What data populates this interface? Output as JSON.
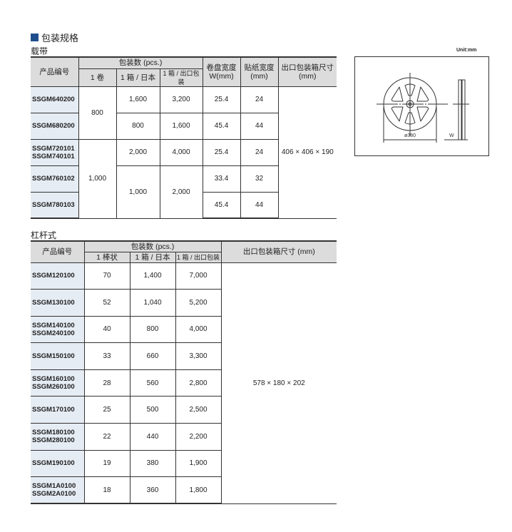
{
  "section_title": "包装规格",
  "accent": "#1f4e8c",
  "carrier": {
    "title": "载带",
    "headers": {
      "product": "产品编号",
      "qty": "包装数 (pcs.)",
      "per_reel": "1 卷",
      "box_japan": "1 箱 / 日本",
      "box_export": "1 箱 / 出口包装",
      "reel_width": "卷盘宽度 W(mm)",
      "tape_width": "贴纸宽度 (mm)",
      "export_box": "出口包装箱尺寸 (mm)"
    },
    "rows": [
      {
        "product": "SSGM640200",
        "per_reel": "800",
        "box_japan": "1,600",
        "box_export": "3,200",
        "reel_width": "25.4",
        "tape_width": "24"
      },
      {
        "product": "SSGM680200",
        "box_japan": "800",
        "box_export": "1,600",
        "reel_width": "45.4",
        "tape_width": "44"
      },
      {
        "product": "SSGM720101\nSSGM740101",
        "per_reel": "1,000",
        "box_japan": "2,000",
        "box_export": "4,000",
        "reel_width": "25.4",
        "tape_width": "24"
      },
      {
        "product": "SSGM760102",
        "box_japan": "1,000",
        "box_export": "2,000",
        "reel_width": "33.4",
        "tape_width": "32"
      },
      {
        "product": "SSGM780103",
        "reel_width": "45.4",
        "tape_width": "44"
      }
    ],
    "export_box": "406 × 406 × 190"
  },
  "diagram": {
    "unit": "Unit:mm",
    "diameter": "ø380",
    "width_label": "W"
  },
  "stick": {
    "title": "杠杆式",
    "headers": {
      "product": "产品编号",
      "qty": "包装数 (pcs.)",
      "per_stick": "1 棒状",
      "box_japan": "1 箱 / 日本",
      "box_export": "1 箱 / 出口包装",
      "export_box": "出口包装箱尺寸 (mm)"
    },
    "rows": [
      {
        "product": "SSGM120100",
        "per_stick": "70",
        "box_japan": "1,400",
        "box_export": "7,000"
      },
      {
        "product": "SSGM130100",
        "per_stick": "52",
        "box_japan": "1,040",
        "box_export": "5,200"
      },
      {
        "product": "SSGM140100\nSSGM240100",
        "per_stick": "40",
        "box_japan": "800",
        "box_export": "4,000"
      },
      {
        "product": "SSGM150100",
        "per_stick": "33",
        "box_japan": "660",
        "box_export": "3,300"
      },
      {
        "product": "SSGM160100\nSSGM260100",
        "per_stick": "28",
        "box_japan": "560",
        "box_export": "2,800"
      },
      {
        "product": "SSGM170100",
        "per_stick": "25",
        "box_japan": "500",
        "box_export": "2,500"
      },
      {
        "product": "SSGM180100\nSSGM280100",
        "per_stick": "22",
        "box_japan": "440",
        "box_export": "2,200"
      },
      {
        "product": "SSGM190100",
        "per_stick": "19",
        "box_japan": "380",
        "box_export": "1,900"
      },
      {
        "product": "SSGM1A0100\nSSGM2A0100",
        "per_stick": "18",
        "box_japan": "360",
        "box_export": "1,800"
      }
    ],
    "export_box": "578 × 180 × 202"
  }
}
